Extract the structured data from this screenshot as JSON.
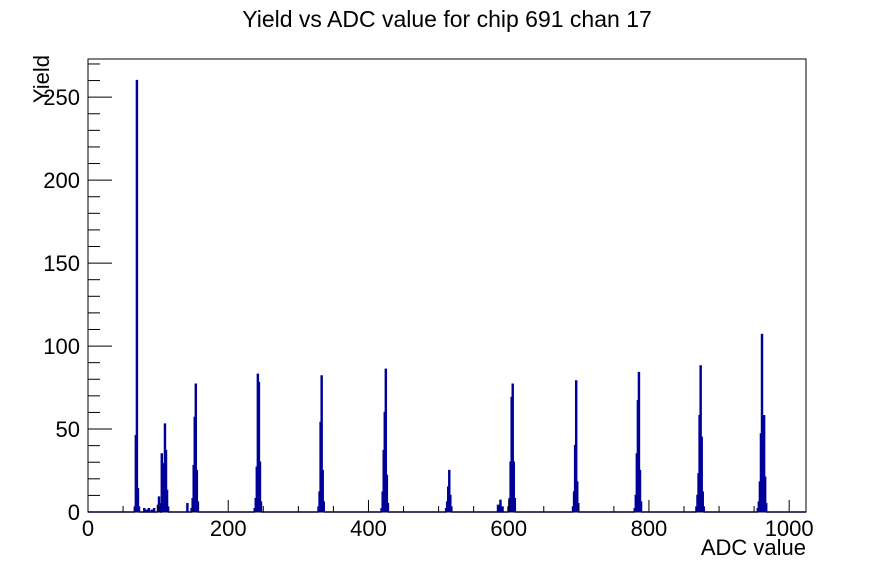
{
  "window": {
    "background": "#ffffff"
  },
  "chart_data": {
    "type": "bar",
    "title": "Yield vs ADC value for chip 691 chan 17",
    "xlabel": "ADC value",
    "ylabel": "Yield",
    "xlim": [
      0,
      1024
    ],
    "ylim": [
      0,
      273
    ],
    "x_major_ticks": [
      0,
      200,
      400,
      600,
      800,
      1000
    ],
    "x_minor_step": 50,
    "y_major_ticks": [
      0,
      50,
      100,
      150,
      200,
      250
    ],
    "y_minor_step": 10,
    "grid": false,
    "legend": false,
    "line_color": "#000099",
    "axis_color": "#000000",
    "bin_width": 1.5,
    "bins": [
      [
        66,
        3
      ],
      [
        67.5,
        46
      ],
      [
        69,
        260
      ],
      [
        70.5,
        14
      ],
      [
        72,
        3
      ],
      [
        79.5,
        2
      ],
      [
        82.5,
        1
      ],
      [
        86,
        2
      ],
      [
        90,
        1
      ],
      [
        93.5,
        2
      ],
      [
        99,
        4
      ],
      [
        100.5,
        9
      ],
      [
        102,
        5
      ],
      [
        104.5,
        35
      ],
      [
        106,
        8
      ],
      [
        107.5,
        29
      ],
      [
        109,
        53
      ],
      [
        110.5,
        37
      ],
      [
        112,
        13
      ],
      [
        113.5,
        3
      ],
      [
        141,
        5
      ],
      [
        147,
        2
      ],
      [
        148.5,
        8
      ],
      [
        150,
        28
      ],
      [
        151.5,
        57
      ],
      [
        153,
        77
      ],
      [
        154.5,
        25
      ],
      [
        156,
        6
      ],
      [
        237,
        2
      ],
      [
        238.5,
        8
      ],
      [
        240,
        27
      ],
      [
        241.5,
        83
      ],
      [
        243,
        78
      ],
      [
        244.5,
        30
      ],
      [
        246,
        6
      ],
      [
        328,
        3
      ],
      [
        329.5,
        12
      ],
      [
        331,
        54
      ],
      [
        332.5,
        82
      ],
      [
        334,
        25
      ],
      [
        335.5,
        6
      ],
      [
        418,
        2
      ],
      [
        419.5,
        12
      ],
      [
        421,
        37
      ],
      [
        422.5,
        60
      ],
      [
        424,
        86
      ],
      [
        425.5,
        22
      ],
      [
        427,
        5
      ],
      [
        510,
        2
      ],
      [
        511.5,
        6
      ],
      [
        513,
        15
      ],
      [
        514.5,
        25
      ],
      [
        516,
        10
      ],
      [
        517.5,
        3
      ],
      [
        584,
        4
      ],
      [
        587.5,
        7
      ],
      [
        590.5,
        3
      ],
      [
        599,
        3
      ],
      [
        600.5,
        8
      ],
      [
        602,
        30
      ],
      [
        603.5,
        69
      ],
      [
        605,
        77
      ],
      [
        606.5,
        30
      ],
      [
        608,
        8
      ],
      [
        691,
        3
      ],
      [
        692.5,
        12
      ],
      [
        694,
        40
      ],
      [
        695.5,
        79
      ],
      [
        697,
        18
      ],
      [
        698.5,
        5
      ],
      [
        779,
        2
      ],
      [
        780.5,
        10
      ],
      [
        782,
        35
      ],
      [
        783.5,
        67
      ],
      [
        785,
        84
      ],
      [
        786.5,
        25
      ],
      [
        788,
        6
      ],
      [
        867,
        3
      ],
      [
        868.5,
        10
      ],
      [
        870,
        23
      ],
      [
        871.5,
        58
      ],
      [
        873,
        88
      ],
      [
        874.5,
        45
      ],
      [
        876,
        12
      ],
      [
        877.5,
        3
      ],
      [
        954.5,
        2
      ],
      [
        956,
        6
      ],
      [
        957.5,
        18
      ],
      [
        959,
        47
      ],
      [
        960.5,
        107
      ],
      [
        962,
        58
      ],
      [
        963.5,
        58
      ],
      [
        965,
        21
      ],
      [
        966.5,
        5
      ]
    ],
    "peaks_summary": [
      {
        "adc": 69,
        "yield": 260
      },
      {
        "adc": 105,
        "yield": 35
      },
      {
        "adc": 109,
        "yield": 53
      },
      {
        "adc": 153,
        "yield": 77
      },
      {
        "adc": 242,
        "yield": 83
      },
      {
        "adc": 333,
        "yield": 82
      },
      {
        "adc": 424,
        "yield": 86
      },
      {
        "adc": 515,
        "yield": 25
      },
      {
        "adc": 605,
        "yield": 77
      },
      {
        "adc": 696,
        "yield": 79
      },
      {
        "adc": 785,
        "yield": 84
      },
      {
        "adc": 873,
        "yield": 88
      },
      {
        "adc": 961,
        "yield": 107
      }
    ]
  }
}
